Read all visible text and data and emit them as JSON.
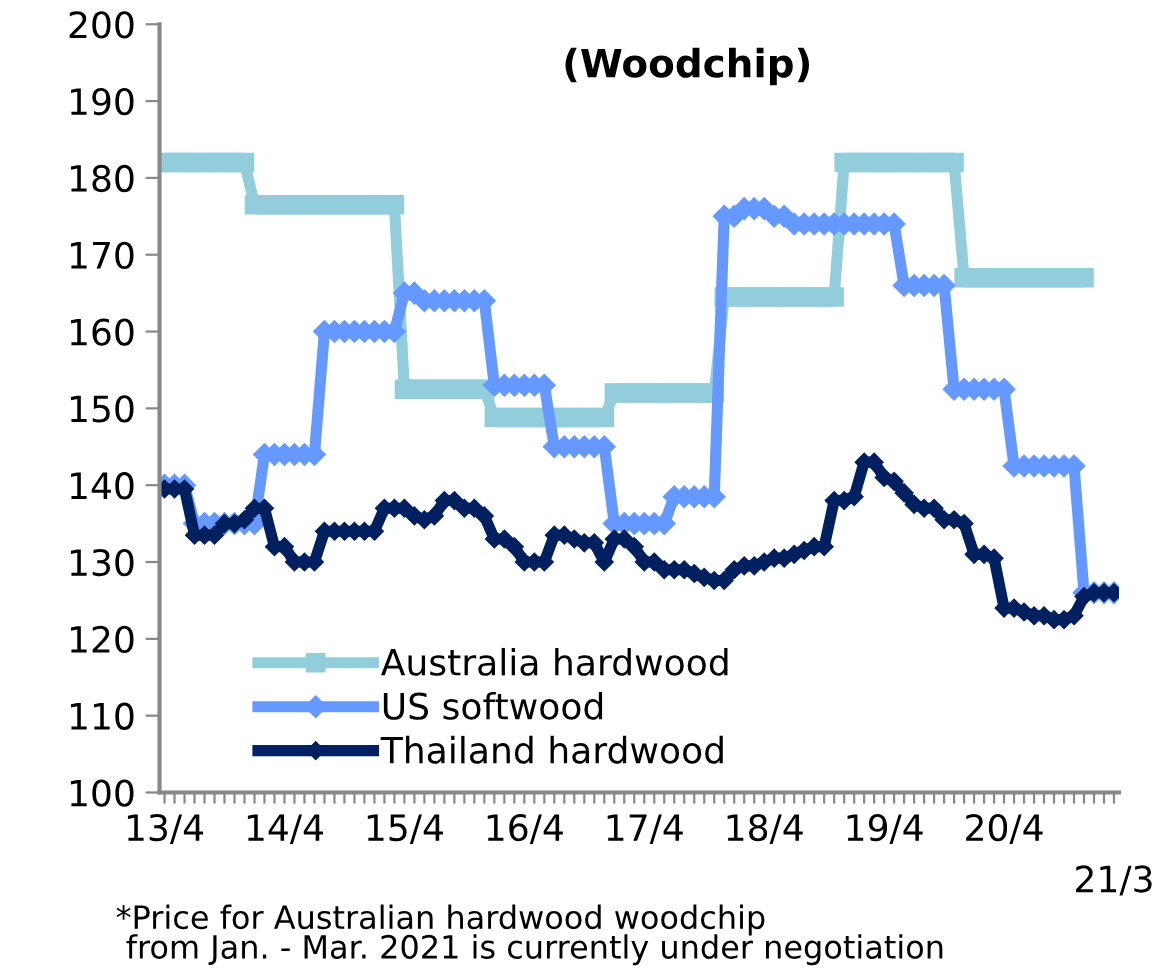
{
  "chart_data": {
    "type": "line",
    "title": "(Woodchip)",
    "categories": [
      "13/4",
      null,
      null,
      null,
      null,
      null,
      null,
      null,
      null,
      null,
      null,
      null,
      "14/4",
      null,
      null,
      null,
      null,
      null,
      null,
      null,
      null,
      null,
      null,
      null,
      "15/4",
      null,
      null,
      null,
      null,
      null,
      null,
      null,
      null,
      null,
      null,
      null,
      "16/4",
      null,
      null,
      null,
      null,
      null,
      null,
      null,
      null,
      null,
      null,
      null,
      "17/4",
      null,
      null,
      null,
      null,
      null,
      null,
      null,
      null,
      null,
      null,
      null,
      "18/4",
      null,
      null,
      null,
      null,
      null,
      null,
      null,
      null,
      null,
      null,
      null,
      "19/4",
      null,
      null,
      null,
      null,
      null,
      null,
      null,
      null,
      null,
      null,
      null,
      "20/4",
      null,
      null,
      null,
      null,
      null,
      null,
      null,
      null,
      null,
      null,
      "21/3"
    ],
    "series": [
      {
        "name": "Australia hardwood",
        "color": "#92cddc",
        "marker": "square",
        "values": [
          182,
          182,
          182,
          182,
          182,
          182,
          182,
          182,
          182,
          176.5,
          176.5,
          176.5,
          176.5,
          176.5,
          176.5,
          176.5,
          176.5,
          176.5,
          176.5,
          176.5,
          176.5,
          176.5,
          176.5,
          176.5,
          152.5,
          152.5,
          152.5,
          152.5,
          152.5,
          152.5,
          152.5,
          152.5,
          152.5,
          148.8,
          148.8,
          148.8,
          148.8,
          148.8,
          148.8,
          148.8,
          148.8,
          148.8,
          148.8,
          148.8,
          148.8,
          152,
          152,
          152,
          152,
          152,
          152,
          152,
          152,
          152,
          152,
          152,
          164.5,
          164.5,
          164.5,
          164.5,
          164.5,
          164.5,
          164.5,
          164.5,
          164.5,
          164.5,
          164.5,
          164.5,
          182,
          182,
          182,
          182,
          182,
          182,
          182,
          182,
          182,
          182,
          182,
          182,
          167,
          167,
          167,
          167,
          167,
          167,
          167,
          167,
          167,
          167,
          167,
          167,
          167,
          null,
          null,
          null
        ]
      },
      {
        "name": "US softwood",
        "color": "#6699ff",
        "marker": "diamond",
        "values": [
          140,
          140,
          140,
          135,
          135,
          135,
          135,
          135,
          135,
          135,
          144,
          144,
          144,
          144,
          144,
          144,
          160,
          160,
          160,
          160,
          160,
          160,
          160,
          160,
          165,
          165,
          164,
          164,
          164,
          164,
          164,
          164,
          164,
          153,
          153,
          153,
          153,
          153,
          153,
          145,
          145,
          145,
          145,
          145,
          145,
          135,
          135,
          135,
          135,
          135,
          135,
          138.5,
          138.5,
          138.5,
          138.5,
          138.5,
          175,
          175,
          176,
          176,
          176,
          175,
          175,
          174,
          174,
          174,
          174,
          174,
          174,
          174,
          174,
          174,
          174,
          174,
          166,
          166,
          166,
          166,
          166,
          152.5,
          152.5,
          152.5,
          152.5,
          152.5,
          152.5,
          142.5,
          142.5,
          142.5,
          142.5,
          142.5,
          142.5,
          142.5,
          126,
          126,
          126,
          126
        ]
      },
      {
        "name": "Thailand hardwood",
        "color": "#002060",
        "marker": "diamond",
        "values": [
          139.5,
          139.5,
          139.5,
          133.5,
          133.5,
          133.5,
          135,
          135,
          135.5,
          137,
          137,
          132,
          132,
          130,
          130,
          130,
          134,
          134,
          134,
          134,
          134,
          134,
          137,
          137,
          137,
          136,
          135.5,
          136,
          138,
          138,
          137,
          137,
          136,
          133,
          133,
          132,
          130,
          130,
          130,
          133.5,
          133.5,
          133,
          132.5,
          132.5,
          130,
          133,
          133,
          132,
          130,
          130,
          129,
          129,
          129,
          128.5,
          128,
          127.6,
          127.6,
          129,
          129.5,
          129.5,
          130,
          130.5,
          130.5,
          131,
          131.5,
          132,
          132,
          138,
          138,
          138.5,
          143,
          143,
          141,
          140.5,
          139,
          137.5,
          137,
          137,
          135.5,
          135.5,
          135,
          131,
          131,
          130.5,
          124,
          124,
          123.5,
          123,
          123,
          122.5,
          122.5,
          123,
          125.5,
          126,
          126,
          126
        ]
      }
    ],
    "ylim": [
      100,
      200
    ],
    "yticks": [
      100,
      110,
      120,
      130,
      140,
      150,
      160,
      170,
      180,
      190,
      200
    ],
    "grid": false,
    "legend": "bottom left",
    "annotations": [
      "*Price for Australian hardwood woodchip\n from Jan. - Mar. 2021 is currently under negotiation"
    ]
  }
}
